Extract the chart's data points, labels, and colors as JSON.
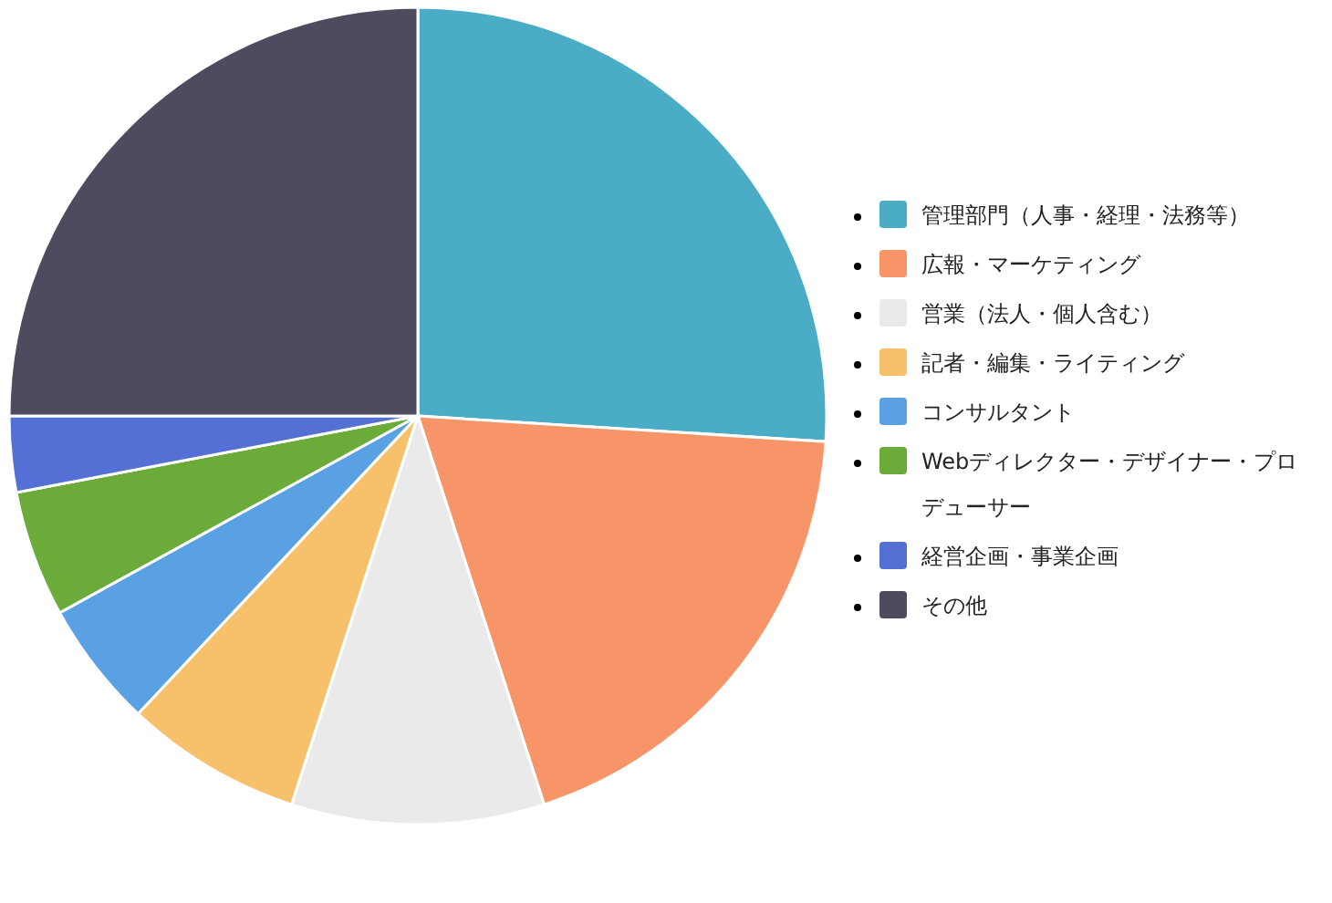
{
  "chart_data": {
    "type": "pie",
    "legend": "right",
    "categories": [
      "管理部門（人事・経理・法務等）",
      "広報・マーケティング",
      "営業（法人・個人含む）",
      "記者・編集・ライティング",
      "コンサルタント",
      "Webディレクター・デザイナー・プロデューサー",
      "経営企画・事業企画",
      "その他"
    ],
    "values": [
      26,
      19,
      10,
      7,
      5,
      5,
      3,
      25
    ],
    "colors": [
      "#4bacc6",
      "#f79468",
      "#eaeaea",
      "#f6c16a",
      "#5aa1e3",
      "#6aab3a",
      "#5470d4",
      "#4f4a5e"
    ]
  }
}
